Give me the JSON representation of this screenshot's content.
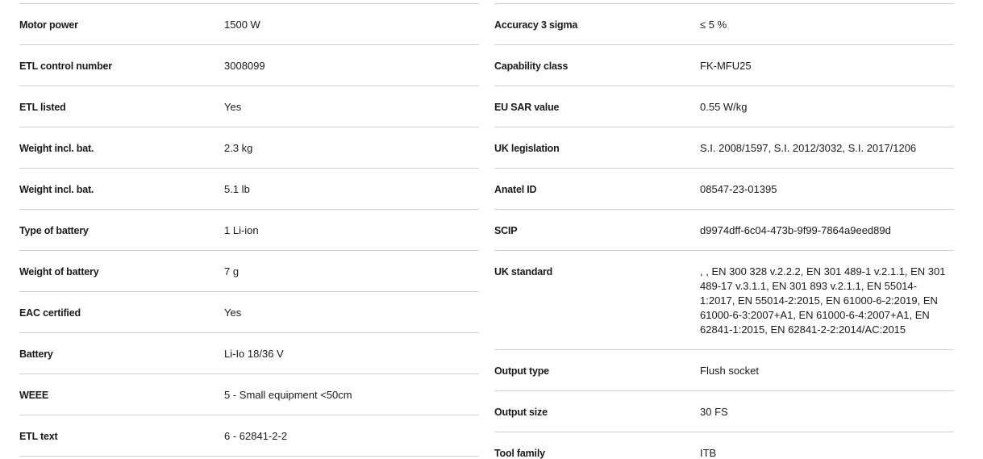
{
  "left_table": [
    {
      "label": "Motor power",
      "value": "1500 W"
    },
    {
      "label": "ETL control number",
      "value": "3008099"
    },
    {
      "label": "ETL listed",
      "value": "Yes"
    },
    {
      "label": "Weight incl. bat.",
      "value": "2.3 kg"
    },
    {
      "label": "Weight incl. bat.",
      "value": "5.1 lb"
    },
    {
      "label": "Type of battery",
      "value": "1 Li-ion"
    },
    {
      "label": "Weight of battery",
      "value": "7 g"
    },
    {
      "label": "EAC certified",
      "value": "Yes"
    },
    {
      "label": "Battery",
      "value": "Li-Io 18/36 V"
    },
    {
      "label": "WEEE",
      "value": "5 - Small equipment <50cm"
    },
    {
      "label": "ETL text",
      "value": "6 - 62841-2-2"
    }
  ],
  "right_table": [
    {
      "label": "Accuracy 3 sigma",
      "value": "≤ 5 %"
    },
    {
      "label": "Capability class",
      "value": "FK-MFU25"
    },
    {
      "label": "EU SAR value",
      "value": "0.55 W/kg"
    },
    {
      "label": "UK legislation",
      "value": "S.I. 2008/1597, S.I. 2012/3032, S.I. 2017/1206"
    },
    {
      "label": "Anatel ID",
      "value": "08547-23-01395"
    },
    {
      "label": "SCIP",
      "value": "d9974dff-6c04-473b-9f99-7864a9eed89d"
    },
    {
      "label": "UK standard",
      "value": ", , EN 300 328 v.2.2.2, EN 301 489-1 v.2.1.1, EN 301 489-17 v.3.1.1, EN 301 893 v.2.1.1, EN 55014-1:2017, EN 55014-2:2015, EN 61000-6-2:2019, EN 61000-6-3:2007+A1, EN 61000-6-4:2007+A1, EN 62841-1:2015, EN 62841-2-2:2014/AC:2015"
    },
    {
      "label": "Output type",
      "value": "Flush socket"
    },
    {
      "label": "Output size",
      "value": "30 FS"
    },
    {
      "label": "Tool family",
      "value": "ITB"
    }
  ]
}
